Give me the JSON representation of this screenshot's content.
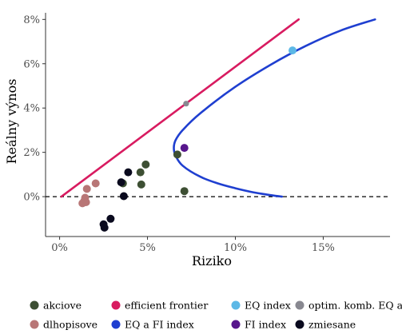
{
  "chart_data": {
    "type": "scatter",
    "xlabel": "Riziko",
    "ylabel": "Reálny výnos",
    "xlim": [
      -0.8,
      18.8
    ],
    "ylim": [
      -1.8,
      8.3
    ],
    "x_ticks": [
      0,
      5,
      10,
      15
    ],
    "x_tick_labels": [
      "0%",
      "5%",
      "10%",
      "15%"
    ],
    "y_ticks": [
      0,
      2,
      4,
      6,
      8
    ],
    "y_tick_labels": [
      "0%",
      "2%",
      "4%",
      "6%",
      "8%"
    ],
    "grid": false,
    "zero_line": {
      "y": 0,
      "style": "dashed",
      "color": "#000000"
    },
    "legend_position": "bottom",
    "series": [
      {
        "name": "akciove",
        "kind": "points",
        "color": "#3d4f33",
        "points": [
          [
            4.9,
            1.45
          ],
          [
            4.6,
            1.1
          ],
          [
            4.65,
            0.55
          ],
          [
            6.7,
            1.9
          ],
          [
            7.1,
            0.25
          ],
          [
            3.6,
            0.6
          ]
        ]
      },
      {
        "name": "dlhopisove",
        "kind": "points",
        "color": "#b87676",
        "points": [
          [
            1.55,
            0.35
          ],
          [
            2.05,
            0.6
          ],
          [
            1.45,
            -0.05
          ],
          [
            1.4,
            -0.2
          ],
          [
            1.3,
            -0.3
          ],
          [
            1.5,
            -0.25
          ]
        ]
      },
      {
        "name": "zmiesane",
        "kind": "points",
        "color": "#0a0a1e",
        "points": [
          [
            3.9,
            1.1
          ],
          [
            3.5,
            0.65
          ],
          [
            3.65,
            0.02
          ],
          [
            2.9,
            -1.0
          ],
          [
            2.5,
            -1.25
          ],
          [
            2.55,
            -1.4
          ]
        ]
      },
      {
        "name": "efficient frontier",
        "kind": "line",
        "color": "#d81b60",
        "points": [
          [
            0.1,
            0.0
          ],
          [
            13.6,
            8.0
          ]
        ]
      },
      {
        "name": "EQ a FI index",
        "kind": "curve",
        "color": "#1f3fd0",
        "points": [
          [
            17.95,
            8.0
          ],
          [
            16.0,
            7.5
          ],
          [
            14.0,
            6.8
          ],
          [
            12.0,
            5.95
          ],
          [
            10.0,
            4.96
          ],
          [
            8.0,
            3.76
          ],
          [
            7.0,
            3.0
          ],
          [
            6.6,
            2.55
          ],
          [
            6.5,
            2.2
          ],
          [
            6.6,
            1.85
          ],
          [
            7.0,
            1.4
          ],
          [
            8.0,
            0.9
          ],
          [
            9.0,
            0.6
          ],
          [
            10.0,
            0.38
          ],
          [
            11.0,
            0.2
          ],
          [
            12.0,
            0.07
          ],
          [
            12.65,
            0.0
          ]
        ]
      },
      {
        "name": "EQ index",
        "kind": "points",
        "color": "#5cb8e6",
        "points": [
          [
            13.25,
            6.6
          ]
        ]
      },
      {
        "name": "FI index",
        "kind": "points",
        "color": "#57168c",
        "points": [
          [
            7.1,
            2.2
          ]
        ]
      },
      {
        "name": "optim. komb. EQ a FI",
        "kind": "points",
        "color": "#888890",
        "points": [
          [
            7.2,
            4.2
          ]
        ]
      }
    ],
    "legend": [
      {
        "label": "akciove",
        "color": "#3d4f33"
      },
      {
        "label": "efficient frontier",
        "color": "#d81b60"
      },
      {
        "label": "EQ index",
        "color": "#5cb8e6"
      },
      {
        "label": "optim. komb. EQ a FI",
        "color": "#888890"
      },
      {
        "label": "dlhopisove",
        "color": "#b87676"
      },
      {
        "label": "EQ a FI index",
        "color": "#1f3fd0"
      },
      {
        "label": "FI index",
        "color": "#57168c"
      },
      {
        "label": "zmiesane",
        "color": "#0a0a1e"
      }
    ]
  }
}
